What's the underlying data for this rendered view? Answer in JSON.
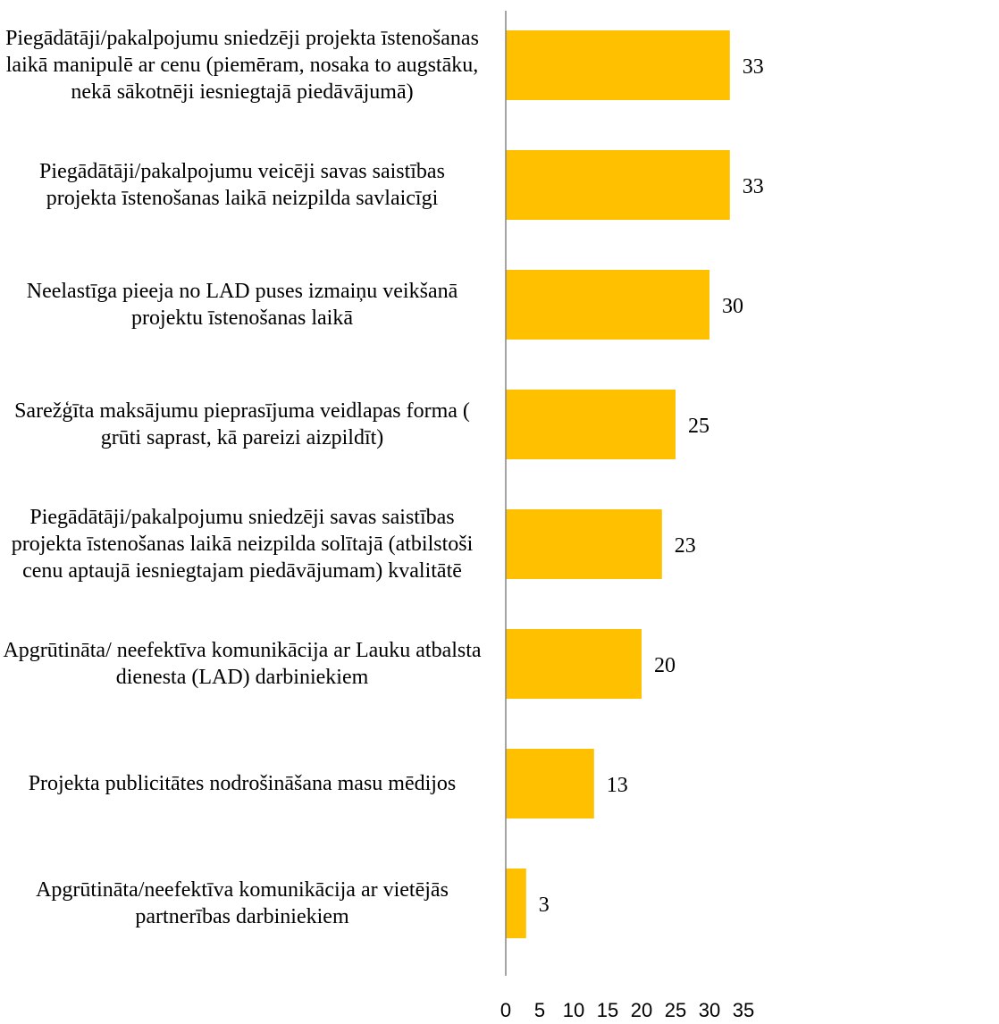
{
  "chart_data": {
    "type": "bar",
    "orientation": "horizontal",
    "categories": [
      "Piegādātāji/pakalpojumu sniedzēji projekta īstenošanas laikā manipulē ar cenu (piemēram, nosaka to augstāku, nekā sākotnēji iesniegtajā piedāvājumā)",
      "Piegādātāji/pakalpojumu veicēji savas saistības projekta īstenošanas laikā neizpilda savlaicīgi",
      "Neelastīga pieeja no LAD puses izmaiņu veikšanā projektu īstenošanas laikā",
      "Sarežģīta maksājumu pieprasījuma veidlapas forma ( grūti saprast, kā pareizi aizpildīt)",
      "Piegādātāji/pakalpojumu sniedzēji savas saistības projekta īstenošanas laikā neizpilda solītajā (atbilstoši cenu aptaujā iesniegtajam piedāvājumam) kvalitātē",
      "Apgrūtināta/ neefektīva komunikācija ar Lauku atbalsta dienesta (LAD) darbiniekiem",
      "Projekta publicitātes nodrošināšana masu mēdijos",
      "Apgrūtināta/neefektīva komunikācija ar vietējās partnerības darbiniekiem"
    ],
    "values": [
      33,
      33,
      30,
      25,
      23,
      20,
      13,
      3
    ],
    "value_labels": [
      "33",
      "33",
      "30",
      "25",
      "23",
      "20",
      "13",
      "3"
    ],
    "xlim": [
      0,
      35
    ],
    "x_ticks": [
      "0",
      "5",
      "10",
      "15",
      "20",
      "25",
      "30",
      "35"
    ],
    "title": "",
    "xlabel": "",
    "ylabel": "",
    "bar_color": "#FFC000",
    "axis_color": "#868686",
    "grid": false,
    "legend": "none"
  }
}
